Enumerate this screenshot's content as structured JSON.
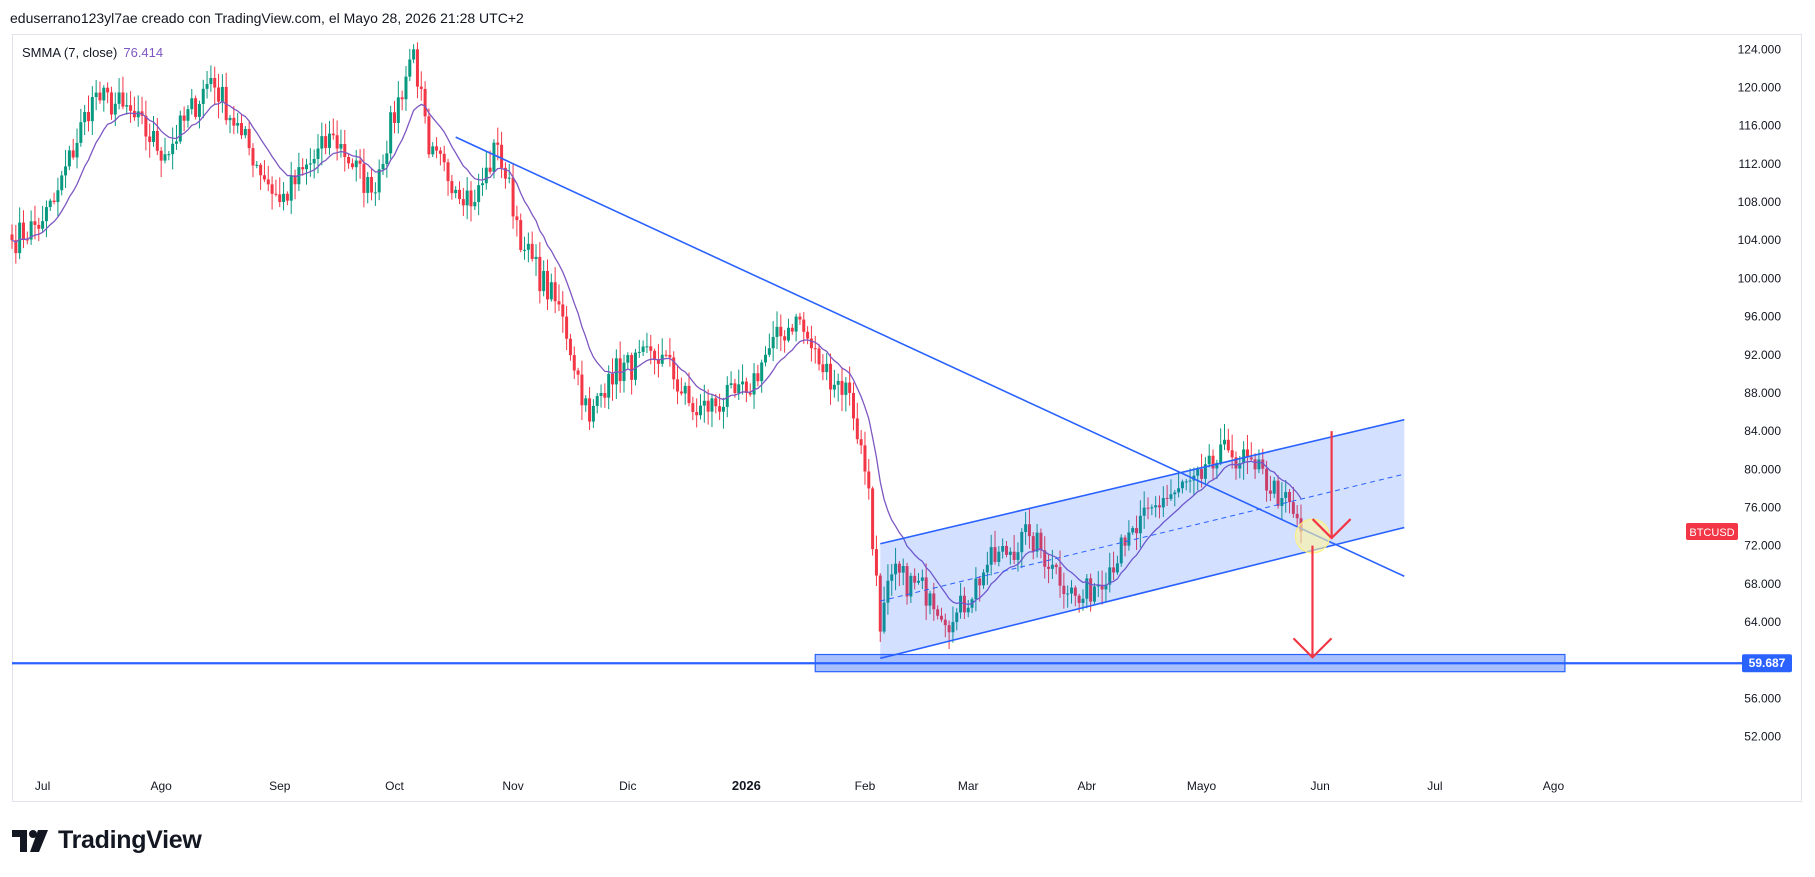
{
  "header": {
    "text": "eduserrano123yl7ae creado con TradingView.com, el Mayo 28, 2026 21:28 UTC+2"
  },
  "legend": {
    "name": "SMMA (7, close)",
    "value": "76.414",
    "value_color": "#7e57c2"
  },
  "footer": {
    "brand": "TradingView",
    "icon": "tradingview-logo-icon"
  },
  "colors": {
    "up": "#089981",
    "down": "#f23645",
    "trendline": "#2962ff",
    "channel_fill": "#2962ff",
    "smma": "#7e57c2",
    "arrow": "#f23645",
    "support": "#2962ff"
  },
  "chart_data": {
    "type": "candlestick",
    "symbol_label": "BTCUSD",
    "y_axis": {
      "ticks": [
        "124.000",
        "120.000",
        "116.000",
        "112.000",
        "108.000",
        "104.000",
        "100.000",
        "96.000",
        "92.000",
        "88.000",
        "84.000",
        "80.000",
        "76.000",
        "72.000",
        "68.000",
        "64.000",
        "60.000",
        "56.000",
        "52.000"
      ],
      "tick_values": [
        124,
        120,
        116,
        112,
        108,
        104,
        100,
        96,
        92,
        88,
        84,
        80,
        76,
        72,
        68,
        64,
        60,
        56,
        52
      ],
      "range": [
        48.5,
        125.5
      ],
      "unit": "thousands USD"
    },
    "x_axis": {
      "ticks": [
        "Jul",
        "Ago",
        "Sep",
        "Oct",
        "Nov",
        "Dic",
        "2026",
        "Feb",
        "Mar",
        "Abr",
        "Mayo",
        "Jun",
        "Jul",
        "Ago"
      ],
      "tick_days": [
        8,
        39,
        70,
        100,
        131,
        161,
        192,
        223,
        250,
        281,
        311,
        342,
        372,
        403
      ],
      "bold_tick": "2026",
      "day0": "2025-06-23",
      "range_days": [
        0,
        457
      ]
    },
    "support_level": {
      "label": "59.687",
      "value": 59.687
    },
    "current_price_label": "BTCUSD",
    "price_anchors": [
      {
        "date": "2025-06-23",
        "close": 104
      },
      {
        "date": "2025-07-01",
        "close": 106
      },
      {
        "date": "2025-07-04",
        "close": 108
      },
      {
        "date": "2025-07-14",
        "close": 119
      },
      {
        "date": "2025-07-22",
        "close": 118
      },
      {
        "date": "2025-08-02",
        "close": 113
      },
      {
        "date": "2025-08-14",
        "close": 121
      },
      {
        "date": "2025-08-22",
        "close": 115
      },
      {
        "date": "2025-09-01",
        "close": 108
      },
      {
        "date": "2025-09-15",
        "close": 115
      },
      {
        "date": "2025-09-25",
        "close": 109
      },
      {
        "date": "2025-10-06",
        "close": 124
      },
      {
        "date": "2025-10-10",
        "close": 113
      },
      {
        "date": "2025-10-22",
        "close": 108
      },
      {
        "date": "2025-10-28",
        "close": 114
      },
      {
        "date": "2025-11-04",
        "close": 103
      },
      {
        "date": "2025-11-14",
        "close": 96
      },
      {
        "date": "2025-11-21",
        "close": 85
      },
      {
        "date": "2025-11-26",
        "close": 90
      },
      {
        "date": "2025-12-10",
        "close": 92
      },
      {
        "date": "2025-12-18",
        "close": 86
      },
      {
        "date": "2026-01-01",
        "close": 88
      },
      {
        "date": "2026-01-06",
        "close": 92
      },
      {
        "date": "2026-01-14",
        "close": 96
      },
      {
        "date": "2026-01-20",
        "close": 91
      },
      {
        "date": "2026-01-28",
        "close": 88
      },
      {
        "date": "2026-02-02",
        "close": 78
      },
      {
        "date": "2026-02-05",
        "close": 63
      },
      {
        "date": "2026-02-08",
        "close": 69
      },
      {
        "date": "2026-02-18",
        "close": 67
      },
      {
        "date": "2026-02-24",
        "close": 64
      },
      {
        "date": "2026-03-05",
        "close": 70
      },
      {
        "date": "2026-03-16",
        "close": 73
      },
      {
        "date": "2026-03-22",
        "close": 70
      },
      {
        "date": "2026-03-29",
        "close": 66
      },
      {
        "date": "2026-04-10",
        "close": 72
      },
      {
        "date": "2026-04-20",
        "close": 77
      },
      {
        "date": "2026-04-30",
        "close": 79
      },
      {
        "date": "2026-05-07",
        "close": 82
      },
      {
        "date": "2026-05-14",
        "close": 80
      },
      {
        "date": "2026-05-21",
        "close": 77
      },
      {
        "date": "2026-05-26",
        "close": 73.5
      }
    ],
    "drawings": {
      "downtrend_line": [
        {
          "date": "2025-10-17",
          "price": 114.8
        },
        {
          "date": "2026-06-22",
          "price": 68.8
        }
      ],
      "channel_top": [
        {
          "date": "2026-02-05",
          "price": 72.2
        },
        {
          "date": "2026-06-22",
          "price": 85.2
        }
      ],
      "channel_bottom": [
        {
          "date": "2026-02-05",
          "price": 60.2
        },
        {
          "date": "2026-06-22",
          "price": 73.9
        }
      ],
      "channel_mid": [
        {
          "date": "2026-02-05",
          "price": 66.2
        },
        {
          "date": "2026-06-22",
          "price": 79.5
        }
      ],
      "support_zone": [
        {
          "date": "2026-01-19",
          "price": 60.6
        },
        {
          "date": "2026-08-03",
          "price": 58.8
        }
      ],
      "arrow_measure": [
        {
          "date": "2026-06-03",
          "price": 84
        },
        {
          "date": "2026-06-03",
          "price": 72.8
        }
      ],
      "arrow_target": [
        {
          "date": "2026-05-29",
          "price": 72
        },
        {
          "date": "2026-05-29",
          "price": 60.3
        }
      ],
      "highlight_circle": {
        "date": "2026-05-29",
        "price": 73
      }
    }
  }
}
